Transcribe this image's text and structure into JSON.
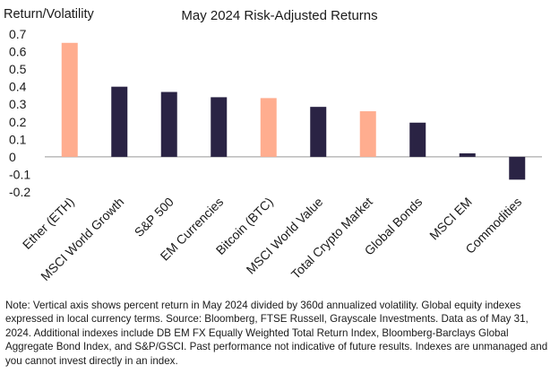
{
  "chart_data": {
    "type": "bar",
    "title": "May 2024 Risk-Adjusted Returns",
    "ylabel": "Return/Volatility",
    "xlabel": "",
    "ylim": [
      -0.2,
      0.7
    ],
    "yticks": [
      0.7,
      0.6,
      0.5,
      0.4,
      0.3,
      0.2,
      0.1,
      0,
      -0.1,
      -0.2
    ],
    "ytick_labels": [
      "0.7",
      "0.6",
      "0.5",
      "0.4",
      "0.3",
      "0.2",
      "0.1",
      "0",
      "-0.1",
      "-0.2"
    ],
    "grid": false,
    "categories": [
      "Ether (ETH)",
      "MSCI World Growth",
      "S&P 500",
      "EM Currencies",
      "Bitcoin (BTC)",
      "MSCI World Value",
      "Total Crypto Market",
      "Global Bonds",
      "MSCI EM",
      "Commodities"
    ],
    "values": [
      0.65,
      0.4,
      0.37,
      0.34,
      0.335,
      0.285,
      0.26,
      0.195,
      0.02,
      -0.13
    ],
    "highlight": [
      true,
      false,
      false,
      false,
      true,
      false,
      true,
      false,
      false,
      false
    ],
    "colors": {
      "highlight": "#FFAD8F",
      "base": "#2A2344",
      "axis": "#999999"
    }
  },
  "note": "Note: Vertical axis shows percent return in May 2024 divided by 360d annualized volatility. Global equity indexes expressed in local currency terms. Source: Bloomberg, FTSE Russell, Grayscale Investments. Data as of May 31, 2024. Additional indexes include DB EM FX Equally Weighted Total Return Index, Bloomberg-Barclays Global Aggregate Bond Index, and S&P/GSCI. Past performance not indicative of future results. Indexes are unmanaged and you cannot invest directly in an index."
}
